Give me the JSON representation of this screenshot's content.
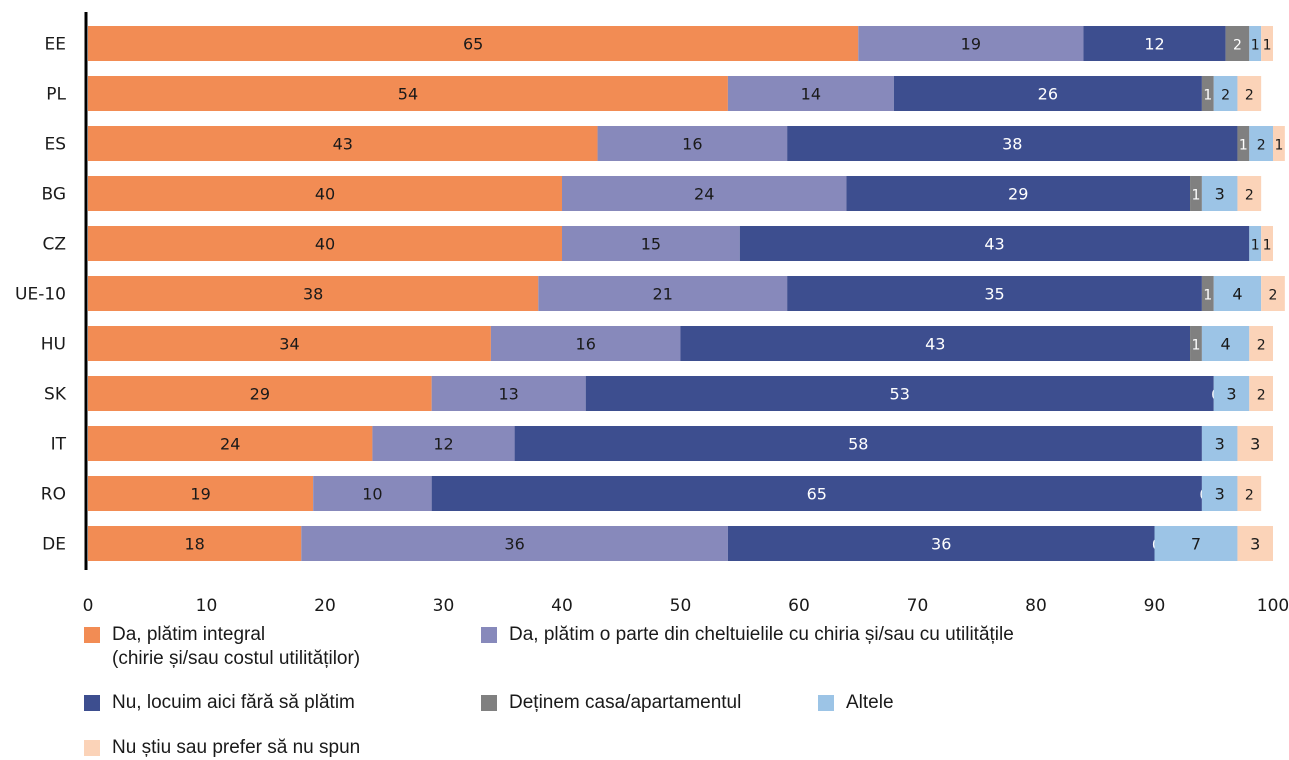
{
  "chart_data": {
    "type": "bar",
    "orientation": "horizontal",
    "stacked": true,
    "categories": [
      "EE",
      "PL",
      "ES",
      "BG",
      "CZ",
      "UE-10",
      "HU",
      "SK",
      "IT",
      "RO",
      "DE"
    ],
    "series": [
      {
        "name": "Da, plătim integral\n(chirie și/sau costul utilităților)",
        "color": "#f28c54",
        "values": [
          65,
          54,
          43,
          40,
          40,
          38,
          34,
          29,
          24,
          19,
          18
        ],
        "labels": [
          "65",
          "54",
          "43",
          "40",
          "40",
          "38",
          "34",
          "29",
          "24",
          "19",
          "18"
        ]
      },
      {
        "name": "Da, plătim o parte din cheltuielile cu chiria și/sau cu utilitățile",
        "color": "#8789bb",
        "values": [
          19,
          14,
          16,
          24,
          15,
          21,
          16,
          13,
          12,
          10,
          36
        ],
        "labels": [
          "19",
          "14",
          "16",
          "24",
          "15",
          "21",
          "16",
          "13",
          "12",
          "10",
          "36"
        ]
      },
      {
        "name": "Nu, locuim aici fără să plătim",
        "color": "#3d4e8f",
        "values": [
          12,
          26,
          38,
          29,
          43,
          35,
          43,
          53,
          58,
          65,
          36
        ],
        "labels": [
          "12",
          "26",
          "38",
          "29",
          "43",
          "35",
          "43",
          "53",
          "58",
          "65",
          "36"
        ]
      },
      {
        "name": "Deținem casa/apartamentul",
        "color": "#808080",
        "values": [
          2,
          1,
          1,
          1,
          0,
          1,
          1,
          0,
          0,
          0,
          0
        ],
        "labels": [
          "2",
          "1",
          "1",
          "1",
          "",
          "1",
          "1",
          "0",
          "",
          "0",
          "0"
        ]
      },
      {
        "name": "Altele",
        "color": "#9cc4e6",
        "values": [
          1,
          2,
          2,
          3,
          1,
          4,
          4,
          3,
          3,
          3,
          7
        ],
        "labels": [
          "1",
          "2",
          "2",
          "3",
          "1",
          "4",
          "4",
          "3",
          "3",
          "3",
          "7"
        ]
      },
      {
        "name": "Nu știu sau prefer să nu spun",
        "color": "#fbd3b8",
        "values": [
          1,
          2,
          1,
          2,
          1,
          2,
          2,
          2,
          3,
          2,
          3
        ],
        "labels": [
          "1",
          "2",
          "1",
          "2",
          "1",
          "2",
          "2",
          "2",
          "3",
          "2",
          "3"
        ]
      }
    ],
    "xlim": [
      0,
      100
    ],
    "xticks": [
      "0",
      "10",
      "20",
      "30",
      "40",
      "50",
      "60",
      "70",
      "80",
      "90",
      "100"
    ],
    "xlabel": "",
    "ylabel": "",
    "grid": false,
    "legend_position": "bottom"
  }
}
